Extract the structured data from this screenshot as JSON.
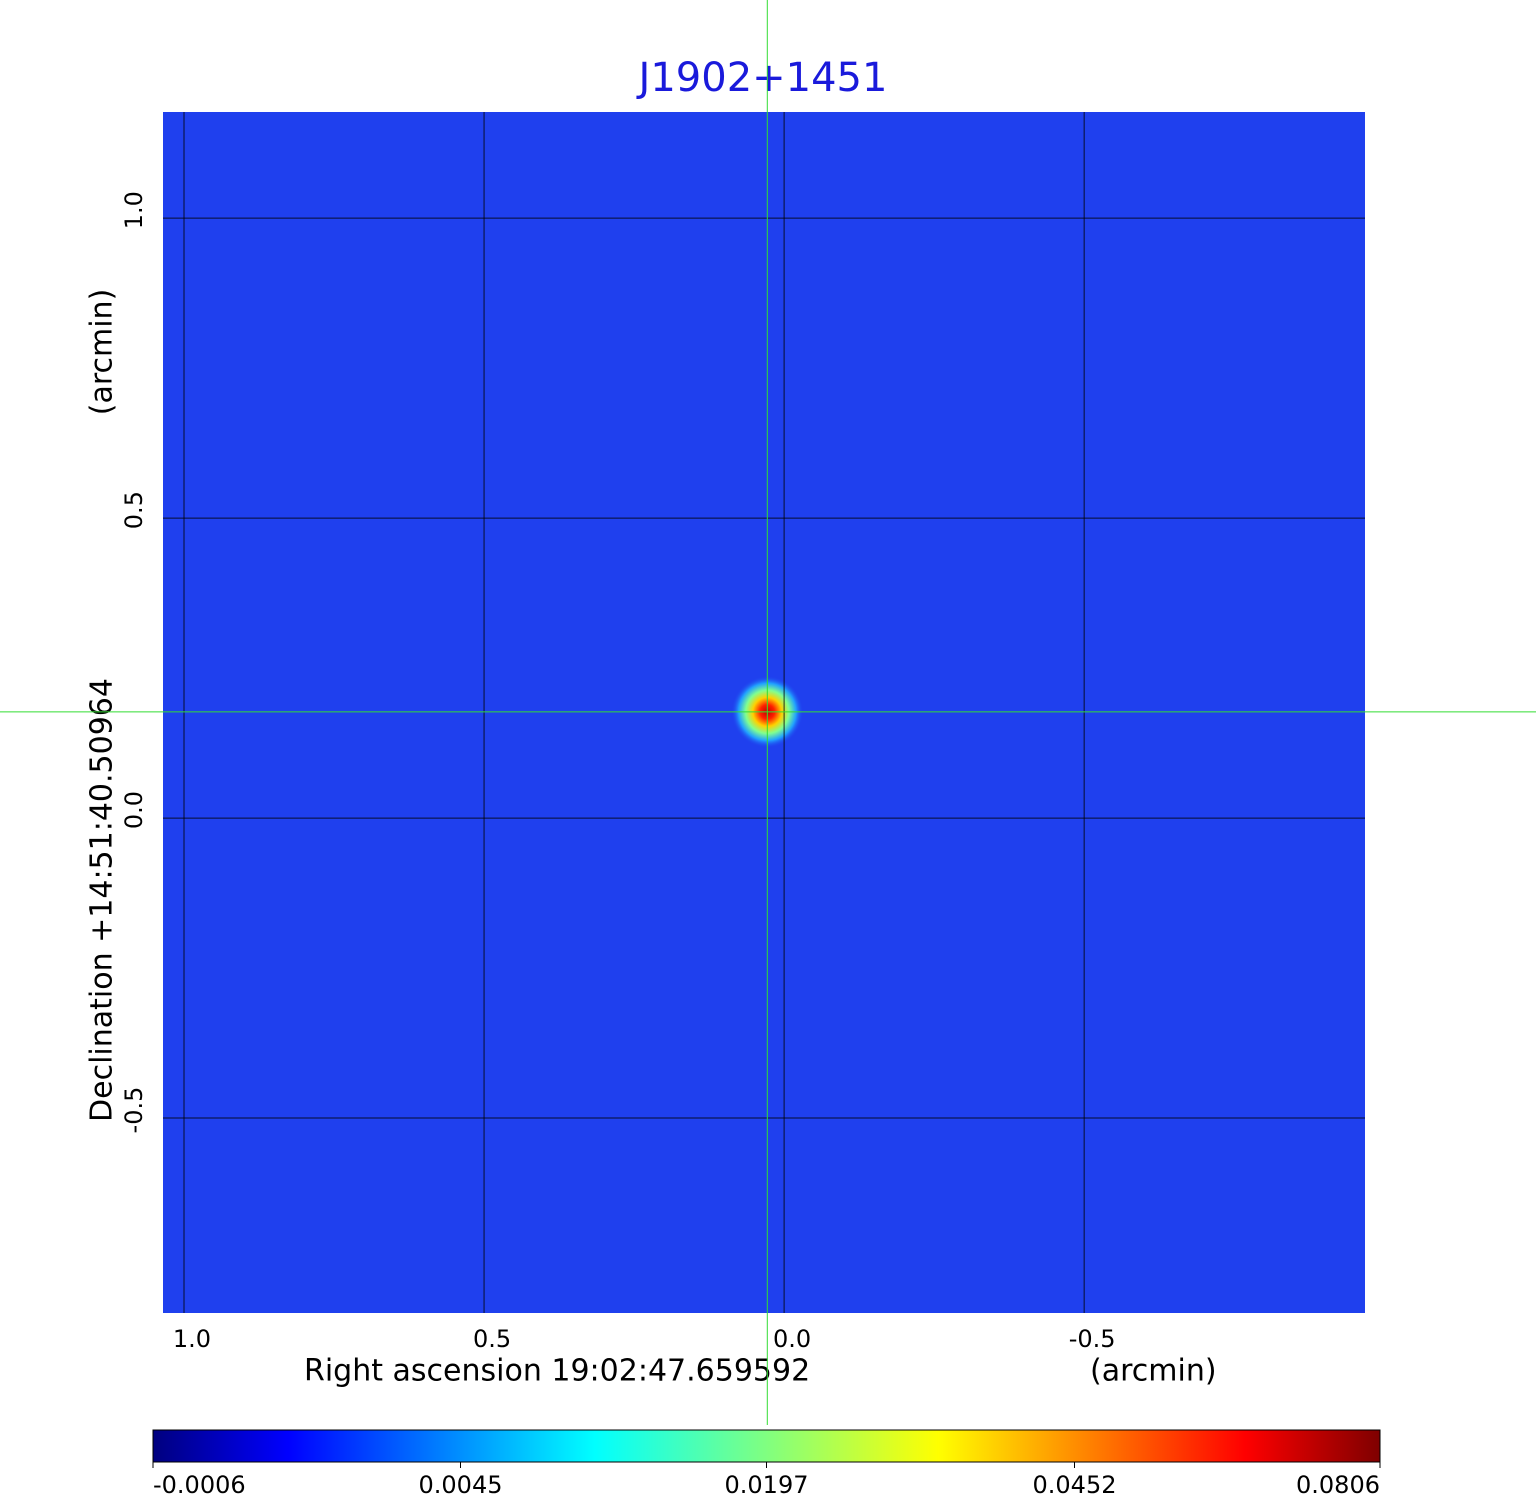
{
  "chart_data": {
    "type": "image",
    "title": "J1902+1451",
    "x_label": "Right ascension  19:02:47.659592",
    "x_unit": "(arcmin)",
    "y_label": "Declination  +14:51:40.50964",
    "y_unit": "(arcmin)",
    "xlim": [
      1.035,
      -0.968
    ],
    "ylim": [
      -0.825,
      1.177
    ],
    "xticks": [
      {
        "value": 1,
        "label": "1.0"
      },
      0.5,
      {
        "value": 0,
        "label": "0.0"
      },
      -0.5
    ],
    "yticks": [
      -0.5,
      {
        "value": 0,
        "label": "0.0"
      },
      0.5,
      {
        "value": 1,
        "label": "1.0"
      }
    ],
    "grid": true,
    "background_color": "#1f40ee",
    "source": {
      "x": 0.028,
      "y": 0.177,
      "peak": 0.0806,
      "fwhm": 0.06
    },
    "crosshair": {
      "x": 0.028,
      "y": 0.177,
      "color": "#33dd33"
    },
    "colorbar": {
      "scale": "sqrt",
      "colormap": "jet",
      "lim": [
        -0.0006,
        0.0806
      ],
      "ticks": [
        -0.0006,
        0.0045,
        0.0197,
        0.0452,
        0.0806
      ]
    }
  }
}
